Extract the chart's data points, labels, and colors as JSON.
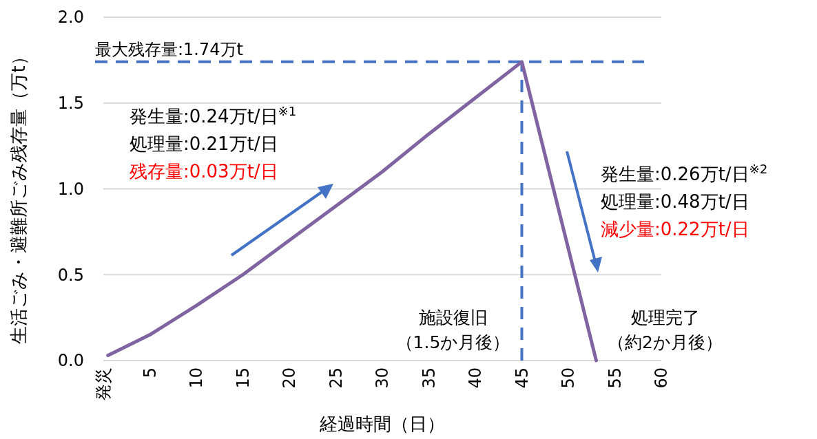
{
  "chart_data": {
    "type": "line",
    "xlabel": "経過時間（日）",
    "ylabel": "生活ごみ・避難所ごみ残存量（万t）",
    "x": [
      0.5,
      5,
      10,
      15,
      20,
      25,
      30,
      35,
      40,
      45,
      53
    ],
    "series": [
      {
        "color": "#8064a2",
        "values": [
          0.03,
          0.15,
          0.32,
          0.5,
          0.7,
          0.9,
          1.1,
          1.32,
          1.53,
          1.74,
          0
        ]
      }
    ],
    "xlim": [
      0,
      60
    ],
    "xticks": [
      {
        "value": 0,
        "label": "発災"
      },
      5,
      10,
      15,
      20,
      25,
      30,
      35,
      40,
      45,
      50,
      55,
      60
    ],
    "ylim": [
      0,
      2
    ],
    "yticks": [
      {
        "value": 0,
        "label": "0.0"
      },
      0.5,
      {
        "value": 1,
        "label": "1.0"
      },
      1.5,
      {
        "value": 2,
        "label": "2.0"
      }
    ],
    "grid": "y",
    "marker": "none",
    "line_style": "solid",
    "ref_lines": [
      {
        "axis": "y",
        "value": 1.74,
        "label": "最大残存量:1.74万t",
        "color": "#4472c4",
        "line_style": "dashed"
      },
      {
        "axis": "x",
        "value": 45,
        "label": "施設復旧（1.5か月後）",
        "color": "#4472c4",
        "line_style": "dashed"
      }
    ],
    "annotations": [
      "発生量:0.24万t/日$^{※1}$",
      "処理量:0.21万t/日",
      "残存量:0.03万t/日",
      "発生量:0.26万t/日$^{※2}$",
      "処理量:0.48万t/日",
      "減少量:0.22万t/日",
      {
        "text": "処理完了（約2か月後）",
        "x": 53,
        "y": 0
      }
    ]
  }
}
